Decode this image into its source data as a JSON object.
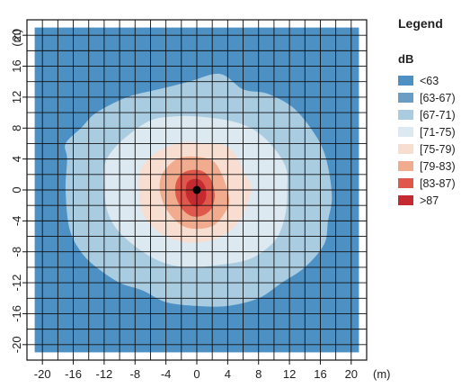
{
  "chart_data": {
    "type": "heatmap",
    "title": "",
    "xlabel": "",
    "ylabel": "",
    "x_unit": "(m)",
    "y_unit": "(m)",
    "xlim": [
      -22,
      22
    ],
    "ylim": [
      -22,
      22
    ],
    "grid": true,
    "grid_step": 2,
    "x_ticks": [
      -20,
      -16,
      -12,
      -8,
      -4,
      0,
      4,
      8,
      12,
      16,
      20
    ],
    "y_ticks": [
      -20,
      -16,
      -12,
      -8,
      -4,
      0,
      4,
      8,
      12,
      16,
      20
    ],
    "x_tick_labels": [
      "-20",
      "-16",
      "-12",
      "-8",
      "-4",
      "0",
      "4",
      "8",
      "12",
      "16",
      "20"
    ],
    "y_tick_labels": [
      "-20",
      "-16",
      "-12",
      "-8",
      "-4",
      "0",
      "4",
      "8",
      "12",
      "16",
      "20"
    ],
    "field_extent": [
      -21,
      21
    ],
    "source": {
      "x": 0,
      "y": 0
    },
    "legend": {
      "title": "Legend",
      "unit": "dB",
      "placement": "right",
      "classes": [
        {
          "label": "<63",
          "color": "#4d90c3"
        },
        {
          "label": "[63-67)",
          "color": "#6a9dc6"
        },
        {
          "label": "[67-71)",
          "color": "#a9cce1"
        },
        {
          "label": "[71-75)",
          "color": "#dde9f1"
        },
        {
          "label": "[75-79)",
          "color": "#f8ddd1"
        },
        {
          "label": "[79-83)",
          "color": "#f1ab8e"
        },
        {
          "label": "[83-87)",
          "color": "#e0584b"
        },
        {
          "label": ">87",
          "color": "#c42a2f"
        }
      ]
    },
    "contours": [
      {
        "class": "[67-71)",
        "points": [
          [
            -17,
            0
          ],
          [
            -16.8,
            4
          ],
          [
            -17,
            6
          ],
          [
            -15,
            8
          ],
          [
            -13,
            10
          ],
          [
            -9,
            12
          ],
          [
            -5,
            13
          ],
          [
            -1,
            14
          ],
          [
            3,
            15
          ],
          [
            6,
            13
          ],
          [
            9,
            12.5
          ],
          [
            12,
            11
          ],
          [
            14,
            9
          ],
          [
            16,
            6
          ],
          [
            17,
            3
          ],
          [
            17.5,
            -1
          ],
          [
            17,
            -4
          ],
          [
            16.5,
            -7
          ],
          [
            14,
            -10
          ],
          [
            11,
            -12
          ],
          [
            8,
            -14
          ],
          [
            4,
            -15
          ],
          [
            0,
            -15
          ],
          [
            -4,
            -14.5
          ],
          [
            -7,
            -13
          ],
          [
            -10,
            -12
          ],
          [
            -13,
            -10
          ],
          [
            -15,
            -8
          ],
          [
            -16.5,
            -5
          ]
        ]
      },
      {
        "class": "[71-75)",
        "points": [
          [
            -12,
            0
          ],
          [
            -12,
            3
          ],
          [
            -11,
            5
          ],
          [
            -9,
            7
          ],
          [
            -6,
            9
          ],
          [
            -3,
            9.5
          ],
          [
            0,
            9.5
          ],
          [
            4,
            9
          ],
          [
            7,
            8
          ],
          [
            9.5,
            6
          ],
          [
            11.5,
            3
          ],
          [
            11.7,
            0
          ],
          [
            11.5,
            -3
          ],
          [
            10.5,
            -6
          ],
          [
            8.5,
            -8
          ],
          [
            6,
            -9.2
          ],
          [
            2,
            -9.8
          ],
          [
            -1,
            -10
          ],
          [
            -4,
            -9.5
          ],
          [
            -7,
            -8
          ],
          [
            -10,
            -5.5
          ],
          [
            -11.5,
            -3
          ]
        ]
      },
      {
        "class": "[75-79)",
        "points": [
          [
            -7.5,
            0
          ],
          [
            -7.3,
            2.5
          ],
          [
            -6,
            4.3
          ],
          [
            -4,
            5.5
          ],
          [
            -1.5,
            6.2
          ],
          [
            1,
            6
          ],
          [
            3.5,
            5.8
          ],
          [
            5,
            4.5
          ],
          [
            6,
            2.5
          ],
          [
            7,
            0.5
          ],
          [
            6.5,
            -2
          ],
          [
            5.5,
            -4
          ],
          [
            4,
            -5.5
          ],
          [
            2,
            -6.5
          ],
          [
            -1,
            -6.8
          ],
          [
            -3.5,
            -6.2
          ],
          [
            -5.5,
            -5
          ],
          [
            -7,
            -3
          ]
        ]
      },
      {
        "class": "[79-83)",
        "points": [
          [
            -4.8,
            0
          ],
          [
            -4.6,
            1.8
          ],
          [
            -3.5,
            3.3
          ],
          [
            -2,
            4.2
          ],
          [
            0,
            4.3
          ],
          [
            2,
            3.8
          ],
          [
            3,
            2.5
          ],
          [
            3.8,
            0.5
          ],
          [
            4.2,
            -1.5
          ],
          [
            3.6,
            -3
          ],
          [
            2.3,
            -4.5
          ],
          [
            0.5,
            -5
          ],
          [
            -1.5,
            -4.8
          ],
          [
            -3,
            -3.7
          ],
          [
            -4.2,
            -2
          ]
        ]
      },
      {
        "class": "[83-87)",
        "points": [
          [
            -2.8,
            0
          ],
          [
            -2.6,
            1.2
          ],
          [
            -1.8,
            2.2
          ],
          [
            -0.5,
            2.6
          ],
          [
            0.8,
            2.4
          ],
          [
            1.8,
            1.4
          ],
          [
            2.2,
            0.2
          ],
          [
            2.3,
            -1
          ],
          [
            1.9,
            -2.4
          ],
          [
            0.8,
            -3.3
          ],
          [
            -0.6,
            -3.4
          ],
          [
            -1.8,
            -2.6
          ],
          [
            -2.6,
            -1.2
          ]
        ]
      },
      {
        "class": ">87",
        "points": [
          [
            -1.4,
            0.3
          ],
          [
            -1.2,
            1
          ],
          [
            -0.5,
            1.4
          ],
          [
            0.4,
            1.3
          ],
          [
            1,
            0.6
          ],
          [
            1.2,
            -0.3
          ],
          [
            1.1,
            -1.3
          ],
          [
            0.5,
            -2
          ],
          [
            -0.4,
            -2.1
          ],
          [
            -1,
            -1.5
          ],
          [
            -1.4,
            -0.6
          ]
        ]
      }
    ]
  }
}
